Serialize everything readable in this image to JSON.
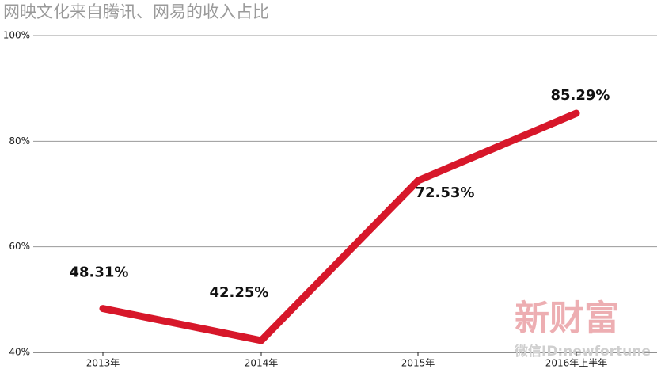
{
  "chart_data": {
    "type": "line",
    "title": "网映文化来自腾讯、网易的收入占比",
    "categories": [
      "2013年",
      "2014年",
      "2015年",
      "2016年上半年"
    ],
    "values": [
      48.31,
      42.25,
      72.53,
      85.29
    ],
    "value_labels": [
      "48.31%",
      "42.25%",
      "72.53%",
      "85.29%"
    ],
    "color": "#d7172a",
    "ylim": [
      40,
      100
    ],
    "yticks": [
      {
        "value": 40,
        "label": "40%"
      },
      {
        "value": 60,
        "label": "60%"
      },
      {
        "value": 80,
        "label": "80%"
      },
      {
        "value": 100,
        "label": "100%"
      }
    ],
    "grid": true,
    "annotations": [
      "新财富",
      "微信ID:newfortune"
    ]
  }
}
